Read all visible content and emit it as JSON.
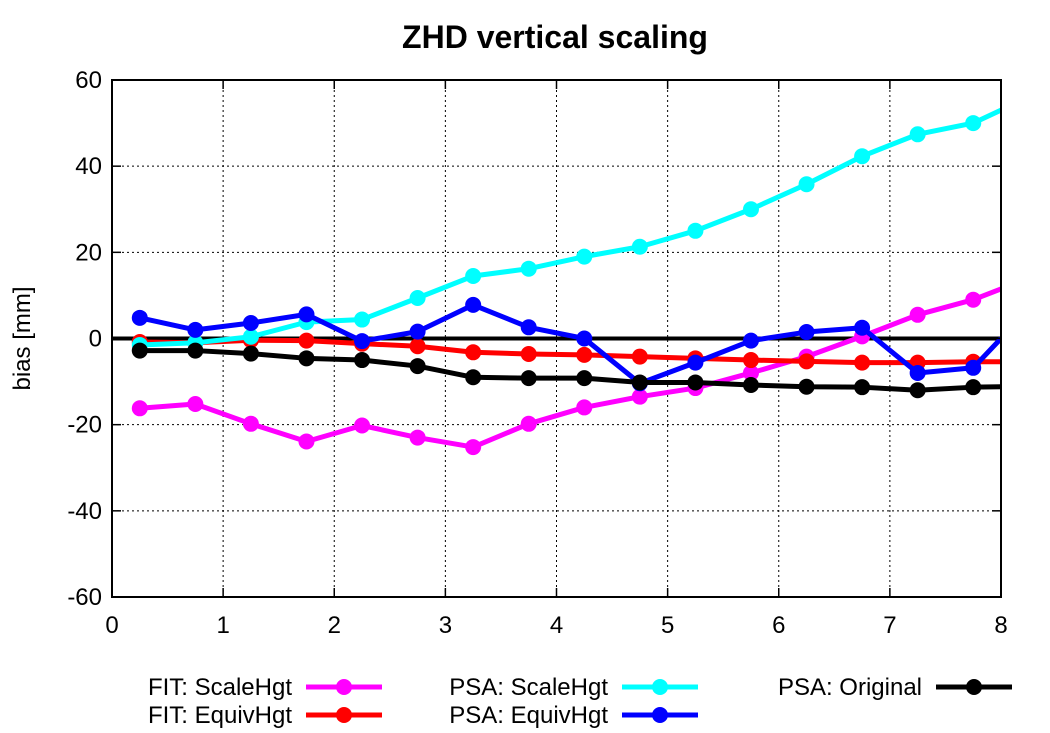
{
  "chart_data": {
    "type": "line",
    "title": "ZHD vertical scaling",
    "xlabel": "",
    "ylabel": "bias [mm]",
    "xlim": [
      0,
      8
    ],
    "ylim": [
      -60,
      60
    ],
    "xticks": [
      "0",
      "1",
      "2",
      "3",
      "4",
      "5",
      "6",
      "7",
      "8"
    ],
    "yticks": [
      "-60",
      "-40",
      "-20",
      "0",
      "20",
      "40",
      "60"
    ],
    "grid": true,
    "legend_position": "bottom",
    "x": [
      0.25,
      0.75,
      1.25,
      1.75,
      2.25,
      2.75,
      3.25,
      3.75,
      4.25,
      4.75,
      5.25,
      5.75,
      6.25,
      6.75,
      7.25,
      7.75,
      8.0
    ],
    "series": [
      {
        "name": "FIT: ScaleHgt",
        "color": "#ff00ff",
        "values": [
          -16.2,
          -15.2,
          -19.8,
          -23.9,
          -20.2,
          -23.0,
          -25.2,
          -19.8,
          -16.0,
          -13.5,
          -11.5,
          -8.0,
          -4.2,
          0.5,
          5.5,
          9.0,
          11.5
        ]
      },
      {
        "name": "FIT: EquivHgt",
        "color": "#ff0000",
        "values": [
          -0.8,
          -1.0,
          -0.4,
          -0.5,
          -1.2,
          -1.8,
          -3.2,
          -3.6,
          -3.8,
          -4.2,
          -4.6,
          -5.0,
          -5.3,
          -5.6,
          -5.6,
          -5.4,
          -5.4
        ]
      },
      {
        "name": "PSA: ScaleHgt",
        "color": "#00ffff",
        "values": [
          -1.5,
          -1.0,
          0.4,
          3.8,
          4.4,
          9.4,
          14.5,
          16.2,
          19.0,
          21.3,
          25.0,
          30.0,
          35.8,
          42.3,
          47.4,
          50.0,
          53.0
        ]
      },
      {
        "name": "PSA: EquivHgt",
        "color": "#0000ff",
        "values": [
          4.8,
          2.0,
          3.6,
          5.6,
          -0.6,
          1.6,
          7.8,
          2.6,
          0.0,
          -10.4,
          -5.6,
          -0.5,
          1.5,
          2.5,
          -8.0,
          -6.8,
          0.0
        ]
      },
      {
        "name": "PSA: Original",
        "color": "#000000",
        "values": [
          -2.8,
          -2.8,
          -3.5,
          -4.6,
          -5.0,
          -6.4,
          -9.0,
          -9.2,
          -9.2,
          -10.2,
          -10.2,
          -10.8,
          -11.2,
          -11.3,
          -12.0,
          -11.3,
          -11.2
        ]
      }
    ]
  }
}
